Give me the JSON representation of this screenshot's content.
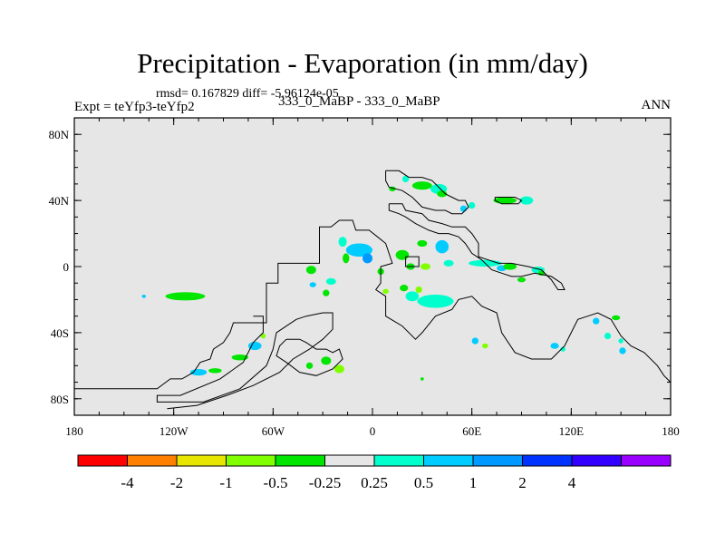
{
  "chart_data": {
    "type": "heatmap",
    "title": "Precipitation - Evaporation (in mm/day)",
    "stats": "rmsd= 0.167829 diff= -5.96124e-05",
    "left_label": "Expt = teYfp3-teYfp2",
    "center_label": "333_0_MaBP - 333_0_MaBP",
    "right_label": "ANN",
    "x_ticks": [
      {
        "value": -180,
        "label": "180"
      },
      {
        "value": -120,
        "label": "120W"
      },
      {
        "value": -60,
        "label": "60W"
      },
      {
        "value": 0,
        "label": "0"
      },
      {
        "value": 60,
        "label": "60E"
      },
      {
        "value": 120,
        "label": "120E"
      },
      {
        "value": 180,
        "label": "180"
      }
    ],
    "y_ticks": [
      {
        "value": 80,
        "label": "80N"
      },
      {
        "value": 40,
        "label": "40N"
      },
      {
        "value": 0,
        "label": "0"
      },
      {
        "value": -40,
        "label": "40S"
      },
      {
        "value": -80,
        "label": "80S"
      }
    ],
    "xlim": [
      -180,
      180
    ],
    "ylim": [
      -90,
      90
    ],
    "background_color": "#e6e6e6",
    "colorbar": {
      "colors": [
        "#ff0000",
        "#ff8000",
        "#e6e600",
        "#80ff00",
        "#00e600",
        "#e6e6e6",
        "#00ffcc",
        "#00ccff",
        "#0099ff",
        "#0033ff",
        "#3300ff",
        "#9900ff"
      ],
      "labels": [
        "-4",
        "-2",
        "-1",
        "-0.5",
        "-0.25",
        "0.25",
        "0.5",
        "1",
        "2",
        "4"
      ]
    },
    "field_patches": [
      {
        "lon": -113,
        "lat": -18,
        "rx": 12,
        "ry": 2.5,
        "color": "#00e600"
      },
      {
        "lon": -138,
        "lat": -18,
        "rx": 1.2,
        "ry": 1,
        "color": "#00ccff"
      },
      {
        "lon": -105,
        "lat": -64,
        "rx": 5,
        "ry": 2,
        "color": "#00ccff"
      },
      {
        "lon": -95,
        "lat": -63,
        "rx": 4,
        "ry": 1.5,
        "color": "#00e600"
      },
      {
        "lon": -80,
        "lat": -55,
        "rx": 5,
        "ry": 1.8,
        "color": "#00e600"
      },
      {
        "lon": -71,
        "lat": -48,
        "rx": 4,
        "ry": 2.5,
        "color": "#00ccff"
      },
      {
        "lon": -66,
        "lat": -42,
        "rx": 1.5,
        "ry": 1.5,
        "color": "#80ff00"
      },
      {
        "lon": -28,
        "lat": -57,
        "rx": 3,
        "ry": 2.5,
        "color": "#00e600"
      },
      {
        "lon": -20,
        "lat": -62,
        "rx": 3,
        "ry": 2.5,
        "color": "#80ff00"
      },
      {
        "lon": -38,
        "lat": -60,
        "rx": 2,
        "ry": 2,
        "color": "#00e600"
      },
      {
        "lon": -37,
        "lat": -2,
        "rx": 3,
        "ry": 2.5,
        "color": "#00e600"
      },
      {
        "lon": -25,
        "lat": -9,
        "rx": 3,
        "ry": 2,
        "color": "#00ffcc"
      },
      {
        "lon": -36,
        "lat": -11,
        "rx": 2,
        "ry": 1.5,
        "color": "#00ccff"
      },
      {
        "lon": -28,
        "lat": -16,
        "rx": 2,
        "ry": 2,
        "color": "#00e600"
      },
      {
        "lon": -18,
        "lat": 15,
        "rx": 2.5,
        "ry": 3,
        "color": "#00ffcc"
      },
      {
        "lon": -8,
        "lat": 10,
        "rx": 8,
        "ry": 4,
        "color": "#00ccff"
      },
      {
        "lon": -3,
        "lat": 5,
        "rx": 3,
        "ry": 3,
        "color": "#0099ff"
      },
      {
        "lon": -16,
        "lat": 5,
        "rx": 2,
        "ry": 3,
        "color": "#00e600"
      },
      {
        "lon": 5,
        "lat": -3,
        "rx": 2,
        "ry": 2,
        "color": "#00e600"
      },
      {
        "lon": 8,
        "lat": -15,
        "rx": 1.8,
        "ry": 1.5,
        "color": "#80ff00"
      },
      {
        "lon": 19,
        "lat": -13,
        "rx": 2.5,
        "ry": 2,
        "color": "#00e600"
      },
      {
        "lon": 28,
        "lat": -14,
        "rx": 2,
        "ry": 2,
        "color": "#80ff00"
      },
      {
        "lon": 18,
        "lat": 7,
        "rx": 4,
        "ry": 3,
        "color": "#00e600"
      },
      {
        "lon": 23,
        "lat": 0,
        "rx": 2.5,
        "ry": 2,
        "color": "#00e600"
      },
      {
        "lon": 32,
        "lat": 0,
        "rx": 3,
        "ry": 2,
        "color": "#80ff00"
      },
      {
        "lon": 30,
        "lat": 14,
        "rx": 3,
        "ry": 2,
        "color": "#00e600"
      },
      {
        "lon": 42,
        "lat": 12,
        "rx": 4,
        "ry": 4,
        "color": "#00ccff"
      },
      {
        "lon": 46,
        "lat": 2,
        "rx": 3,
        "ry": 2,
        "color": "#00ffcc"
      },
      {
        "lon": 38,
        "lat": -21,
        "rx": 11,
        "ry": 4,
        "color": "#00ffcc"
      },
      {
        "lon": 24,
        "lat": -18,
        "rx": 4,
        "ry": 3,
        "color": "#00ffcc"
      },
      {
        "lon": 30,
        "lat": 49,
        "rx": 6,
        "ry": 2.5,
        "color": "#00e600"
      },
      {
        "lon": 40,
        "lat": 47,
        "rx": 5,
        "ry": 3,
        "color": "#00ffcc"
      },
      {
        "lon": 42,
        "lat": 44,
        "rx": 3,
        "ry": 2,
        "color": "#00e600"
      },
      {
        "lon": 55,
        "lat": 35,
        "rx": 2,
        "ry": 2,
        "color": "#00ccff"
      },
      {
        "lon": 60,
        "lat": 37,
        "rx": 2,
        "ry": 2,
        "color": "#00ffcc"
      },
      {
        "lon": 12,
        "lat": 47,
        "rx": 2,
        "ry": 1.5,
        "color": "#00e600"
      },
      {
        "lon": 20,
        "lat": 53,
        "rx": 2,
        "ry": 2,
        "color": "#00ffcc"
      },
      {
        "lon": 68,
        "lat": 2,
        "rx": 10,
        "ry": 2,
        "color": "#00ffcc"
      },
      {
        "lon": 78,
        "lat": -1,
        "rx": 3,
        "ry": 1.8,
        "color": "#00ccff"
      },
      {
        "lon": 83,
        "lat": 0,
        "rx": 4,
        "ry": 2,
        "color": "#00e600"
      },
      {
        "lon": 100,
        "lat": -2,
        "rx": 4,
        "ry": 2,
        "color": "#00ffcc"
      },
      {
        "lon": 102,
        "lat": -4,
        "rx": 2,
        "ry": 1.5,
        "color": "#00e600"
      },
      {
        "lon": 80,
        "lat": 40,
        "rx": 7,
        "ry": 2,
        "color": "#00e600"
      },
      {
        "lon": 93,
        "lat": 40,
        "rx": 4,
        "ry": 2.5,
        "color": "#00ffcc"
      },
      {
        "lon": 90,
        "lat": -8,
        "rx": 2.5,
        "ry": 1.5,
        "color": "#00e600"
      },
      {
        "lon": 62,
        "lat": -45,
        "rx": 2,
        "ry": 2,
        "color": "#00ccff"
      },
      {
        "lon": 68,
        "lat": -48,
        "rx": 1.8,
        "ry": 1.5,
        "color": "#80ff00"
      },
      {
        "lon": 110,
        "lat": -48,
        "rx": 2.5,
        "ry": 1.8,
        "color": "#00ccff"
      },
      {
        "lon": 115,
        "lat": -50,
        "rx": 1.5,
        "ry": 1.5,
        "color": "#00ffcc"
      },
      {
        "lon": 135,
        "lat": -33,
        "rx": 2,
        "ry": 2,
        "color": "#00ccff"
      },
      {
        "lon": 142,
        "lat": -42,
        "rx": 2,
        "ry": 2,
        "color": "#00ffcc"
      },
      {
        "lon": 150,
        "lat": -45,
        "rx": 1.5,
        "ry": 1.5,
        "color": "#00ffcc"
      },
      {
        "lon": 151,
        "lat": -51,
        "rx": 2,
        "ry": 2,
        "color": "#00ccff"
      },
      {
        "lon": 147,
        "lat": -31,
        "rx": 2.5,
        "ry": 1.5,
        "color": "#00e600"
      },
      {
        "lon": 30,
        "lat": -68,
        "rx": 1,
        "ry": 1,
        "color": "#00e600"
      }
    ],
    "land_outlines": [
      [
        [
          -180,
          -74
        ],
        [
          -130,
          -74
        ],
        [
          -122,
          -68
        ],
        [
          -115,
          -68
        ],
        [
          -108,
          -64
        ],
        [
          -104,
          -58
        ],
        [
          -98,
          -56
        ],
        [
          -96,
          -50
        ],
        [
          -90,
          -46
        ],
        [
          -86,
          -40
        ],
        [
          -84,
          -34
        ],
        [
          -64,
          -34
        ],
        [
          -64,
          -10
        ],
        [
          -57,
          -10
        ],
        [
          -57,
          2
        ],
        [
          -32,
          2
        ],
        [
          -32,
          24
        ],
        [
          -25,
          24
        ],
        [
          -20,
          28
        ],
        [
          -12,
          28
        ],
        [
          -10,
          22
        ],
        [
          -2,
          22
        ],
        [
          3,
          18
        ],
        [
          8,
          14
        ],
        [
          12,
          2
        ],
        [
          5,
          0
        ],
        [
          5,
          -10
        ],
        [
          2,
          -14
        ],
        [
          8,
          -18
        ],
        [
          8,
          -30
        ],
        [
          18,
          -36
        ],
        [
          26,
          -44
        ],
        [
          30,
          -40
        ],
        [
          38,
          -30
        ],
        [
          48,
          -26
        ],
        [
          52,
          -20
        ],
        [
          60,
          -18
        ],
        [
          66,
          -24
        ],
        [
          75,
          -28
        ],
        [
          78,
          -40
        ],
        [
          86,
          -52
        ],
        [
          96,
          -56
        ],
        [
          108,
          -56
        ],
        [
          116,
          -48
        ],
        [
          120,
          -40
        ],
        [
          124,
          -32
        ],
        [
          130,
          -30
        ],
        [
          136,
          -28
        ],
        [
          144,
          -32
        ],
        [
          150,
          -42
        ],
        [
          156,
          -48
        ],
        [
          164,
          -52
        ],
        [
          172,
          -60
        ],
        [
          176,
          -66
        ],
        [
          180,
          -70
        ]
      ],
      [
        [
          -72,
          -30
        ],
        [
          -66,
          -30
        ],
        [
          -66,
          -40
        ],
        [
          -72,
          -46
        ],
        [
          -78,
          -58
        ],
        [
          -92,
          -68
        ],
        [
          -116,
          -78
        ],
        [
          -130,
          -78
        ],
        [
          -130,
          -82
        ],
        [
          -102,
          -82
        ],
        [
          -80,
          -74
        ],
        [
          -64,
          -60
        ],
        [
          -60,
          -50
        ],
        [
          -58,
          -40
        ],
        [
          -52,
          -36
        ],
        [
          -46,
          -32
        ],
        [
          -40,
          -30
        ],
        [
          -30,
          -28
        ],
        [
          -24,
          -28
        ],
        [
          -24,
          -38
        ],
        [
          -30,
          -44
        ],
        [
          -38,
          -50
        ],
        [
          -48,
          -56
        ],
        [
          -56,
          -64
        ],
        [
          -72,
          -72
        ],
        [
          -88,
          -78
        ],
        [
          -106,
          -84
        ],
        [
          -124,
          -86
        ]
      ],
      [
        [
          -52,
          -44
        ],
        [
          -44,
          -44
        ],
        [
          -40,
          -46
        ],
        [
          -34,
          -50
        ],
        [
          -28,
          -50
        ],
        [
          -24,
          -52
        ],
        [
          -20,
          -50
        ],
        [
          -18,
          -56
        ],
        [
          -24,
          -62
        ],
        [
          -34,
          -66
        ],
        [
          -44,
          -64
        ],
        [
          -52,
          -58
        ],
        [
          -58,
          -54
        ],
        [
          -56,
          -48
        ],
        [
          -52,
          -44
        ]
      ],
      [
        [
          10,
          38
        ],
        [
          18,
          38
        ],
        [
          20,
          34
        ],
        [
          30,
          32
        ],
        [
          34,
          28
        ],
        [
          42,
          26
        ],
        [
          48,
          24
        ],
        [
          56,
          24
        ],
        [
          60,
          20
        ],
        [
          64,
          14
        ],
        [
          64,
          6
        ],
        [
          70,
          4
        ],
        [
          76,
          2
        ],
        [
          84,
          2
        ],
        [
          94,
          0
        ],
        [
          102,
          -2
        ],
        [
          108,
          -8
        ],
        [
          112,
          -14
        ],
        [
          116,
          -14
        ],
        [
          114,
          -10
        ],
        [
          108,
          -6
        ],
        [
          98,
          -4
        ],
        [
          90,
          -6
        ],
        [
          84,
          -6
        ],
        [
          78,
          -4
        ],
        [
          72,
          -2
        ],
        [
          66,
          4
        ],
        [
          60,
          8
        ],
        [
          56,
          14
        ],
        [
          52,
          18
        ],
        [
          46,
          20
        ],
        [
          40,
          20
        ],
        [
          34,
          22
        ],
        [
          26,
          26
        ],
        [
          20,
          30
        ],
        [
          16,
          32
        ],
        [
          10,
          34
        ],
        [
          10,
          38
        ]
      ],
      [
        [
          8,
          58
        ],
        [
          16,
          58
        ],
        [
          22,
          54
        ],
        [
          30,
          54
        ],
        [
          36,
          52
        ],
        [
          40,
          48
        ],
        [
          44,
          44
        ],
        [
          48,
          42
        ],
        [
          52,
          40
        ],
        [
          56,
          40
        ],
        [
          58,
          36
        ],
        [
          54,
          32
        ],
        [
          48,
          32
        ],
        [
          44,
          34
        ],
        [
          38,
          34
        ],
        [
          30,
          36
        ],
        [
          24,
          42
        ],
        [
          18,
          46
        ],
        [
          10,
          48
        ],
        [
          8,
          52
        ],
        [
          8,
          58
        ]
      ],
      [
        [
          74,
          42
        ],
        [
          86,
          42
        ],
        [
          90,
          40
        ],
        [
          88,
          38
        ],
        [
          78,
          38
        ],
        [
          74,
          40
        ],
        [
          74,
          42
        ]
      ],
      [
        [
          20,
          6
        ],
        [
          28,
          6
        ],
        [
          28,
          0
        ],
        [
          20,
          0
        ],
        [
          20,
          6
        ]
      ]
    ]
  }
}
